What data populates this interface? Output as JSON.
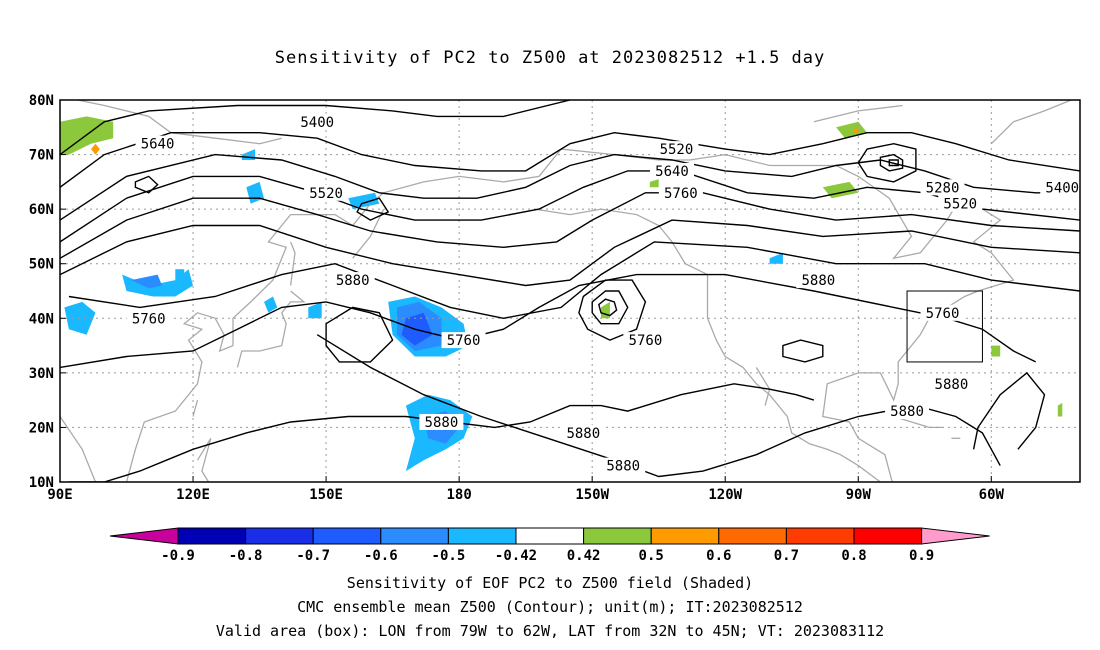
{
  "title": "Sensitivity of PC2 to Z500 at 2023082512 +1.5 day",
  "map": {
    "lat_labels": [
      "80N",
      "70N",
      "60N",
      "50N",
      "40N",
      "30N",
      "20N",
      "10N"
    ],
    "lon_labels": [
      "90E",
      "120E",
      "150E",
      "180",
      "150W",
      "120W",
      "90W",
      "60W"
    ],
    "contour_labels": [
      {
        "text": "5400",
        "lon": 148,
        "lat": 76
      },
      {
        "text": "5640",
        "lon": 112,
        "lat": 72
      },
      {
        "text": "5520",
        "lon": 150,
        "lat": 63
      },
      {
        "text": "5520",
        "lon": 229,
        "lat": 71
      },
      {
        "text": "5640",
        "lon": 228,
        "lat": 67
      },
      {
        "text": "5760",
        "lon": 230,
        "lat": 63
      },
      {
        "text": "5280",
        "lon": 289,
        "lat": 64
      },
      {
        "text": "5520",
        "lon": 293,
        "lat": 61
      },
      {
        "text": "5400",
        "lon": 316,
        "lat": 64
      },
      {
        "text": "5760",
        "lon": 110,
        "lat": 40
      },
      {
        "text": "5880",
        "lon": 156,
        "lat": 47
      },
      {
        "text": "5760",
        "lon": 181,
        "lat": 36
      },
      {
        "text": "5760",
        "lon": 222,
        "lat": 36
      },
      {
        "text": "5880",
        "lon": 261,
        "lat": 47
      },
      {
        "text": "5760",
        "lon": 289,
        "lat": 41
      },
      {
        "text": "5880",
        "lon": 291,
        "lat": 28
      },
      {
        "text": "5880",
        "lon": 281,
        "lat": 23
      },
      {
        "text": "5880",
        "lon": 176,
        "lat": 21
      },
      {
        "text": "5880",
        "lon": 208,
        "lat": 19
      },
      {
        "text": "5880",
        "lon": 217,
        "lat": 13
      }
    ],
    "valid_box": {
      "lon_w": -79,
      "lon_e": -62,
      "lat_s": 32,
      "lat_n": 45
    }
  },
  "colorbar": {
    "tick_labels": [
      "-0.9",
      "-0.8",
      "-0.7",
      "-0.6",
      "-0.5",
      "-0.42",
      "0.42",
      "0.5",
      "0.6",
      "0.7",
      "0.8",
      "0.9"
    ],
    "colors": [
      "#0000b4",
      "#1a2ee8",
      "#1e5cff",
      "#2b8cff",
      "#1ab8ff",
      "#ffffff",
      "#8cc83c",
      "#ff9a00",
      "#ff6a00",
      "#ff3c00",
      "#ff0000"
    ],
    "low_extend_color": "#c8009c",
    "high_extend_color": "#ff9ccc"
  },
  "captions": [
    "Sensitivity of EOF PC2 to Z500 field (Shaded)",
    "CMC ensemble mean Z500 (Contour); unit(m); IT:2023082512",
    "Valid area (box): LON from 79W to 62W, LAT from 32N to 45N; VT: 2023083112"
  ]
}
